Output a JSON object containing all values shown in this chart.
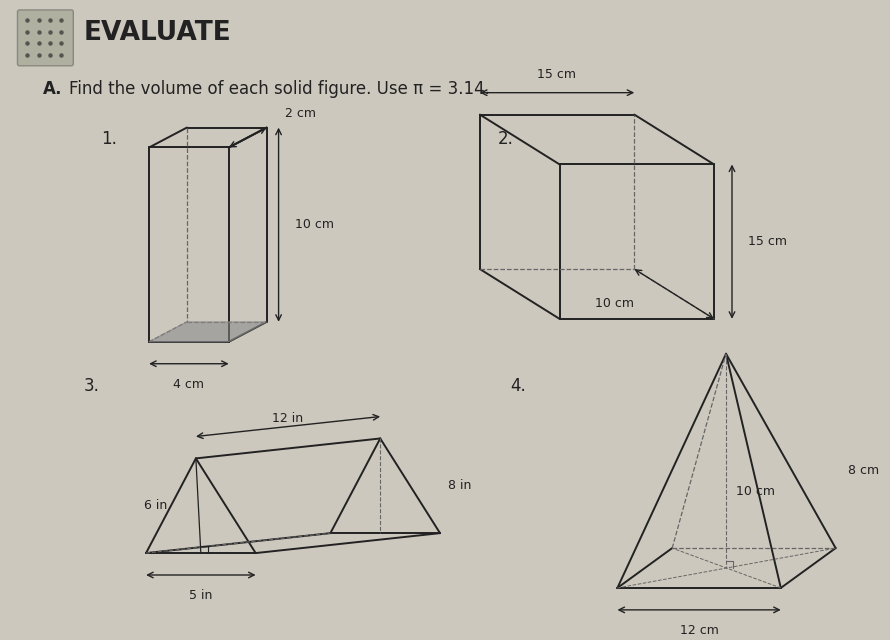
{
  "title": "EVALUATE",
  "subtitle_letter": "A.",
  "subtitle_text": "Find the volume of each solid figure. Use π = 3.14.",
  "bg_color": "#ccc8be",
  "line_color": "#222222",
  "dashed_color": "#666666",
  "fig1": {
    "number": "1.",
    "dims": {
      "w": "2 cm",
      "h": "10 cm",
      "d": "4 cm"
    }
  },
  "fig2": {
    "number": "2.",
    "dims": {
      "top": "15 cm",
      "h": "15 cm",
      "d": "10 cm"
    }
  },
  "fig3": {
    "number": "3.",
    "dims": {
      "base": "5 in",
      "height": "6 in",
      "length": "12 in",
      "slant": "8 in"
    }
  },
  "fig4": {
    "number": "4.",
    "dims": {
      "base": "12 cm",
      "height": "10 cm",
      "side": "8 cm"
    }
  }
}
